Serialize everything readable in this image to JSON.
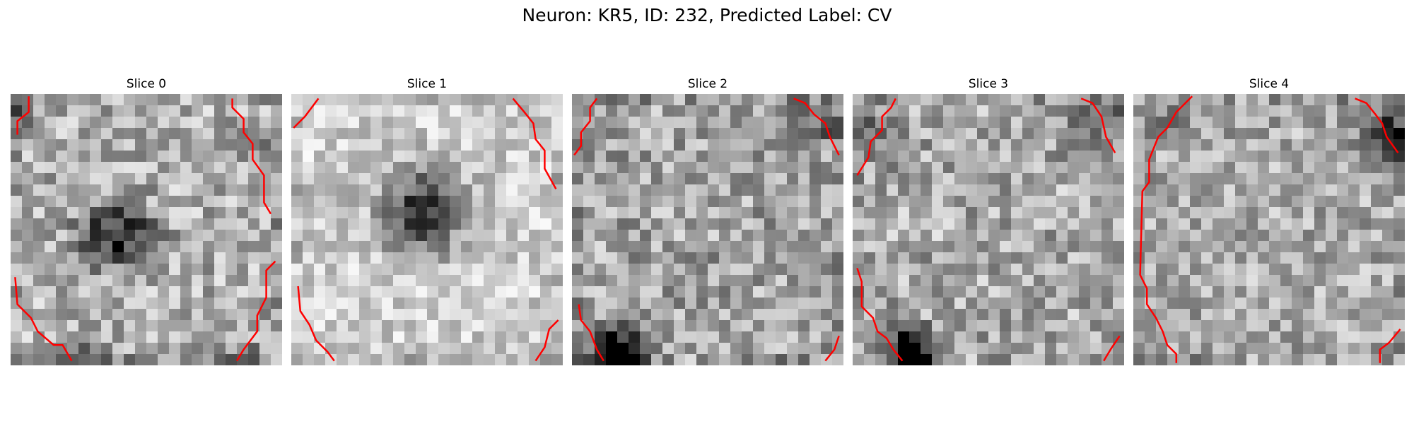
{
  "figure": {
    "title": "Neuron: KR5, ID: 232, Predicted Label: CV"
  },
  "panels": [
    {
      "title": "Slice 0",
      "image": "grayscale-noise-slice-0",
      "contour_color": "#ff0000"
    },
    {
      "title": "Slice 1",
      "image": "grayscale-noise-slice-1",
      "contour_color": "#ff0000"
    },
    {
      "title": "Slice 2",
      "image": "grayscale-noise-slice-2",
      "contour_color": "#ff0000"
    },
    {
      "title": "Slice 3",
      "image": "grayscale-noise-slice-3",
      "contour_color": "#ff0000"
    },
    {
      "title": "Slice 4",
      "image": "grayscale-noise-slice-4",
      "contour_color": "#ff0000"
    }
  ]
}
